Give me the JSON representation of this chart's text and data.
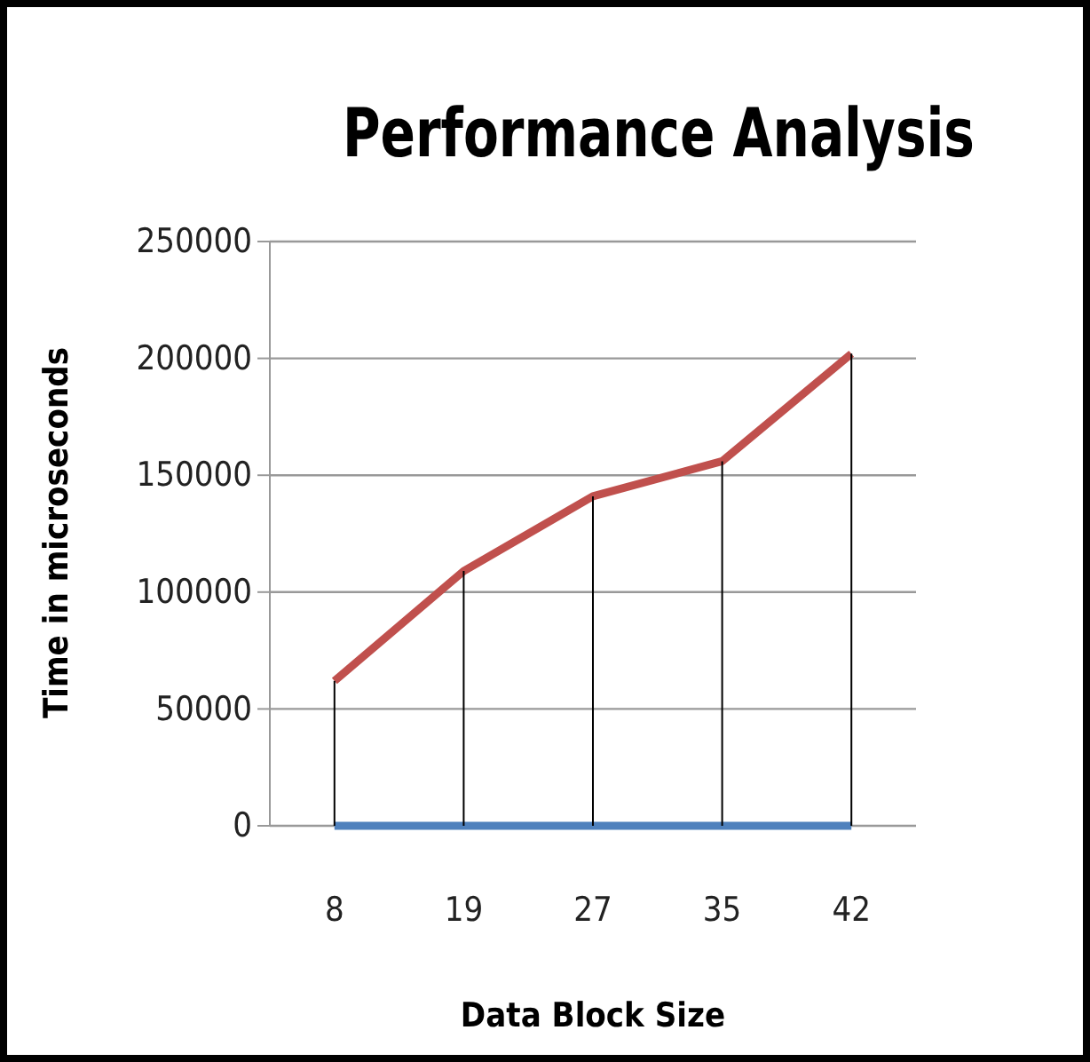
{
  "chart_data": {
    "type": "line",
    "title": "Performance Analysis",
    "xlabel": "Data Block Size",
    "ylabel": "Time in microseconds",
    "categories": [
      "8",
      "19",
      "27",
      "35",
      "42"
    ],
    "series": [
      {
        "color": "#c0504d",
        "values": [
          62000,
          109000,
          141000,
          156000,
          202000
        ],
        "errors": [
          [
            0,
            62000
          ],
          [
            0,
            109000
          ],
          [
            0,
            141000
          ],
          [
            0,
            156000
          ],
          [
            0,
            202000
          ]
        ]
      },
      {
        "color": "#4f81bd",
        "values": [
          0,
          0,
          0,
          0,
          0
        ]
      }
    ],
    "ylim": [
      0,
      250000
    ],
    "yticks": [
      0,
      50000,
      100000,
      150000,
      200000,
      250000
    ],
    "grid": "y",
    "marker": "none",
    "line_style": "solid"
  }
}
